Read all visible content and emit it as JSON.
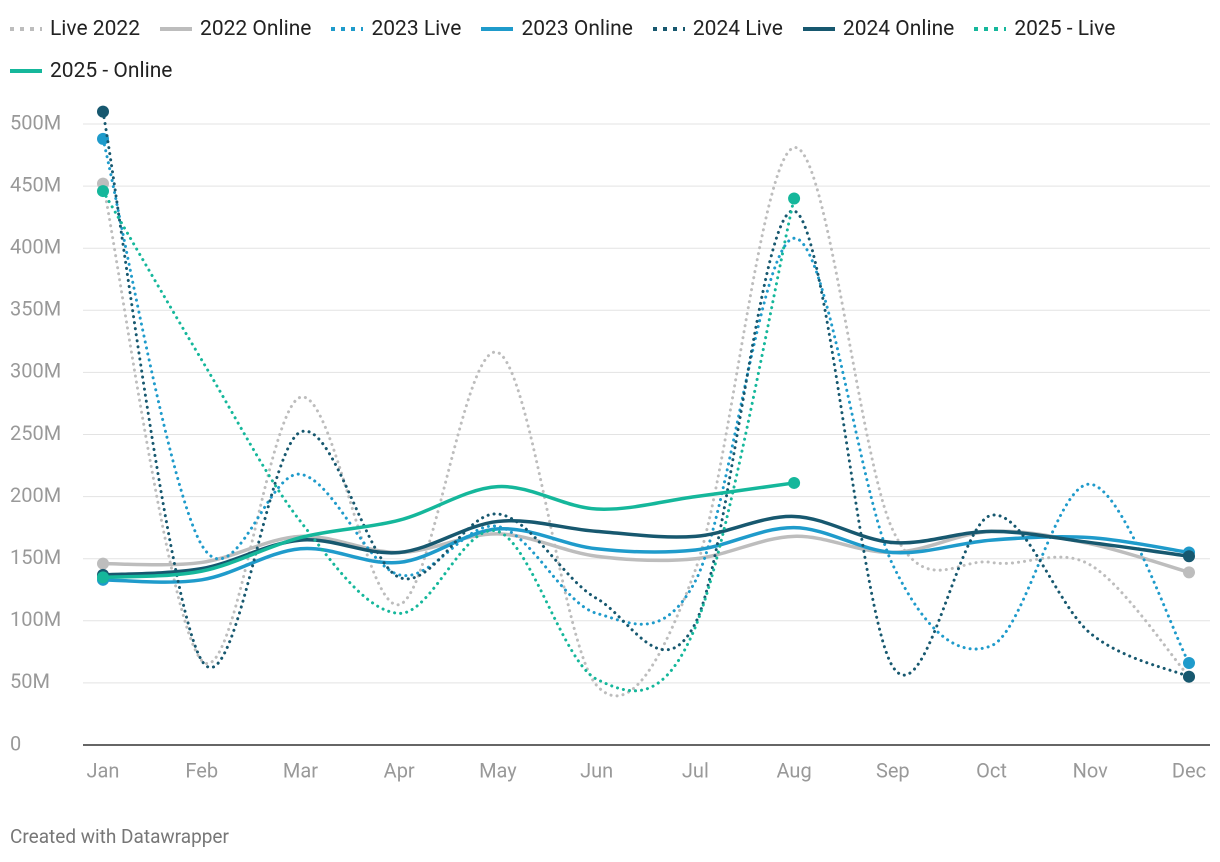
{
  "chart_data": {
    "type": "line",
    "categories": [
      "Jan",
      "Feb",
      "Mar",
      "Apr",
      "May",
      "Jun",
      "Jul",
      "Aug",
      "Sep",
      "Oct",
      "Nov",
      "Dec"
    ],
    "series": [
      {
        "name": "Live 2022",
        "color": "#bdbdbd",
        "dashed": true,
        "values": [
          452,
          68,
          280,
          113,
          316,
          48,
          141,
          481,
          173,
          147,
          145,
          55
        ]
      },
      {
        "name": "2022 Online",
        "color": "#bdbdbd",
        "dashed": false,
        "values": [
          146,
          147,
          168,
          155,
          170,
          152,
          150,
          168,
          155,
          172,
          162,
          139
        ]
      },
      {
        "name": "2023 Live",
        "color": "#1f9bcb",
        "dashed": true,
        "values": [
          488,
          161,
          218,
          137,
          176,
          106,
          132,
          408,
          145,
          80,
          210,
          66
        ]
      },
      {
        "name": "2023 Online",
        "color": "#1f9bcb",
        "dashed": false,
        "values": [
          133,
          133,
          158,
          147,
          174,
          158,
          157,
          175,
          155,
          165,
          167,
          155
        ]
      },
      {
        "name": "2024 Live",
        "color": "#17586f",
        "dashed": true,
        "values": [
          510,
          68,
          252,
          135,
          186,
          118,
          98,
          430,
          63,
          185,
          90,
          55
        ]
      },
      {
        "name": "2024 Online",
        "color": "#17586f",
        "dashed": false,
        "values": [
          137,
          142,
          165,
          155,
          180,
          172,
          168,
          184,
          163,
          172,
          163,
          152
        ]
      },
      {
        "name": "2025 - Live",
        "color": "#15b79b",
        "dashed": true,
        "values": [
          446,
          310,
          180,
          106,
          172,
          53,
          95,
          440,
          null,
          null,
          null,
          null
        ]
      },
      {
        "name": "2025 - Online",
        "color": "#15b79b",
        "dashed": false,
        "values": [
          135,
          140,
          167,
          181,
          208,
          190,
          200,
          211,
          null,
          null,
          null,
          null
        ]
      }
    ],
    "ylim": [
      0,
      500
    ],
    "yticks": [
      0,
      {
        "value": 50,
        "label": "50M"
      },
      {
        "value": 100,
        "label": "100M"
      },
      {
        "value": 150,
        "label": "150M"
      },
      {
        "value": 200,
        "label": "200M"
      },
      {
        "value": 250,
        "label": "250M"
      },
      {
        "value": 300,
        "label": "300M"
      },
      {
        "value": 350,
        "label": "350M"
      },
      {
        "value": 400,
        "label": "400M"
      },
      {
        "value": 450,
        "label": "450M"
      },
      {
        "value": 500,
        "label": "500M"
      }
    ],
    "grid": true,
    "legend": "top",
    "credit": "Created with Datawrapper"
  }
}
